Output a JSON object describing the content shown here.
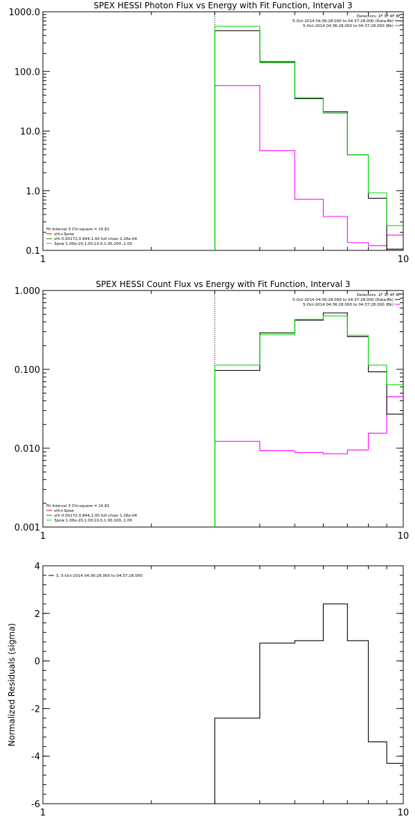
{
  "colors": {
    "data": "#000000",
    "model": "#00dd00",
    "background": "#ff00ff",
    "component_vth": "#cc0000",
    "component_fit": "#008800"
  },
  "chart_data": [
    {
      "type": "line",
      "step": true,
      "title": "SPEX HESSI Photon Flux vs Energy with Fit Function, Interval 3",
      "xlabel": "",
      "ylabel": "",
      "xscale": "log",
      "yscale": "log",
      "xlim": [
        1,
        10
      ],
      "ylim": [
        0.1,
        1000
      ],
      "xticks": [
        1,
        10
      ],
      "xtick_labels": [
        "1",
        "10"
      ],
      "yticks": [
        0.1,
        1,
        10,
        100,
        1000
      ],
      "ytick_labels": [
        "0.1",
        "1.0",
        "10.0",
        "100.0",
        "1000.0"
      ],
      "vline_x": 3,
      "bin_edges": [
        3,
        4,
        5,
        6,
        7,
        8,
        9,
        10
      ],
      "series": [
        {
          "name": "data",
          "color_key": "data",
          "values": [
            480,
            145,
            35,
            21,
            4,
            0.75,
            0.105
          ]
        },
        {
          "name": "model",
          "color_key": "model",
          "values": [
            570,
            140,
            36,
            20,
            4,
            0.92,
            0.26
          ]
        },
        {
          "name": "background",
          "color_key": "background",
          "values": [
            58,
            4.7,
            0.72,
            0.37,
            0.135,
            0.12,
            0.18
          ]
        }
      ],
      "legend": {
        "lines": [
          "Detectors: 1F 3F 4F 8F",
          "5-Oct-2014 04:36:28.000 to 04:37:28.000 (Data-Bk)",
          "5-Oct-2014 04:36:28.000 to 04:37:28.000 (Bk)"
        ],
        "colors": [
          "",
          "data",
          "background"
        ],
        "position": "top-right"
      },
      "fit_legend": {
        "lines": [
          "Fit Interval 3   Chi-square = 10.81",
          "vth+3pow",
          "vth 0.00172,0.844,1.00  full chian 1.26e-04",
          "3pow 1.00e-20,1.00,10.0,1.00,100.,1.00"
        ],
        "colors": [
          "",
          "component_vth",
          "component_fit",
          "model"
        ],
        "position": "bottom-left"
      }
    },
    {
      "type": "line",
      "step": true,
      "title": "SPEX HESSI Count Flux vs Energy with Fit Function, Interval 3",
      "xlabel": "",
      "ylabel": "",
      "xscale": "log",
      "yscale": "log",
      "xlim": [
        1,
        10
      ],
      "ylim": [
        0.001,
        1
      ],
      "xticks": [
        1,
        10
      ],
      "xtick_labels": [
        "1",
        "10"
      ],
      "yticks": [
        0.001,
        0.01,
        0.1,
        1
      ],
      "ytick_labels": [
        "0.001",
        "0.010",
        "0.100",
        "1.000"
      ],
      "vline_x": 3,
      "bin_edges": [
        3,
        4,
        5,
        6,
        7,
        8,
        9,
        10
      ],
      "series": [
        {
          "name": "data",
          "color_key": "data",
          "values": [
            0.097,
            0.29,
            0.42,
            0.52,
            0.26,
            0.093,
            0.027
          ]
        },
        {
          "name": "model",
          "color_key": "model",
          "values": [
            0.113,
            0.275,
            0.43,
            0.475,
            0.27,
            0.113,
            0.064
          ]
        },
        {
          "name": "background",
          "color_key": "background",
          "values": [
            0.0122,
            0.0093,
            0.0088,
            0.0085,
            0.0095,
            0.0155,
            0.045
          ]
        }
      ],
      "legend": {
        "lines": [
          "Detectors: 1F 3F 4F 8F",
          "5-Oct-2014 04:36:28.000 to 04:37:28.000 (Data-Bk)",
          "5-Oct-2014 04:36:28.000 to 04:37:28.000 (Bk)"
        ],
        "colors": [
          "",
          "data",
          "background"
        ],
        "position": "top-right"
      },
      "fit_legend": {
        "lines": [
          "Fit Interval 3   Chi-square = 10.81",
          "vth+3pow",
          "vth 0.00172,0.844,1.00  full chian 1.26e-04",
          "3pow 1.00e-20,1.00,10.0,1.00,100.,1.00"
        ],
        "colors": [
          "",
          "component_vth",
          "component_fit",
          "model"
        ],
        "position": "bottom-left"
      }
    },
    {
      "type": "line",
      "step": true,
      "title": "",
      "xlabel": "",
      "ylabel": "Normalized Residuals (sigma)",
      "xscale": "log",
      "yscale": "linear",
      "xlim": [
        1,
        10
      ],
      "ylim": [
        -6,
        4
      ],
      "xticks": [
        1,
        10
      ],
      "xtick_labels": [
        "1",
        "10"
      ],
      "yticks": [
        -6,
        -4,
        -2,
        0,
        2,
        4
      ],
      "ytick_labels": [
        "-6",
        "-4",
        "-2",
        "0",
        "2",
        "4"
      ],
      "bin_edges": [
        3,
        4,
        5,
        6,
        7,
        8,
        9,
        10
      ],
      "bin_drop_to_axis": true,
      "series": [
        {
          "name": "residuals",
          "color_key": "data",
          "values": [
            -2.4,
            0.75,
            0.85,
            2.4,
            0.85,
            -3.4,
            -4.3
          ]
        }
      ],
      "legend": {
        "lines": [
          "3.  5-Oct-2014 04:36:28.000 to 04:37:28.000"
        ],
        "colors": [
          "data"
        ],
        "position": "top-left"
      }
    }
  ]
}
